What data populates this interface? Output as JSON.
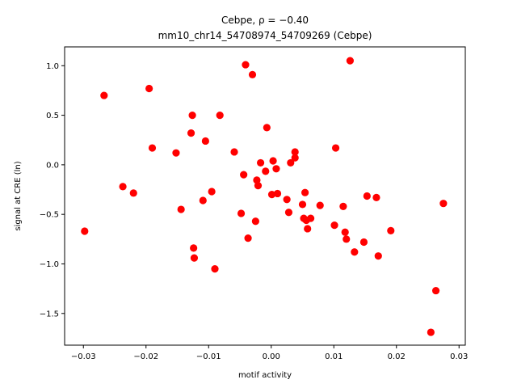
{
  "chart_data": {
    "type": "scatter",
    "title_line1": "Cebpe, ρ = −0.40",
    "title_line2": "mm10_chr14_54708974_54709269 (Cebpe)",
    "xlabel": "motif activity",
    "ylabel": "signal at CRE (ln)",
    "xlim": [
      -0.033,
      0.031
    ],
    "ylim": [
      -1.82,
      1.19
    ],
    "xticks": [
      -0.03,
      -0.02,
      -0.01,
      0.0,
      0.01,
      0.02,
      0.03
    ],
    "xtick_labels": [
      "−0.03",
      "−0.02",
      "−0.01",
      "0.00",
      "0.01",
      "0.02",
      "0.03"
    ],
    "yticks": [
      -1.5,
      -1.0,
      -0.5,
      0.0,
      0.5,
      1.0
    ],
    "ytick_labels": [
      "−1.5",
      "−1.0",
      "−0.5",
      "0.0",
      "0.5",
      "1.0"
    ],
    "grid": false,
    "color": "#ff0000",
    "points": [
      {
        "x": -0.0298,
        "y": -0.67
      },
      {
        "x": -0.0267,
        "y": 0.7
      },
      {
        "x": -0.0237,
        "y": -0.22
      },
      {
        "x": -0.022,
        "y": -0.285
      },
      {
        "x": -0.0195,
        "y": 0.77
      },
      {
        "x": -0.019,
        "y": 0.17
      },
      {
        "x": -0.0152,
        "y": 0.12
      },
      {
        "x": -0.0144,
        "y": -0.45
      },
      {
        "x": -0.0128,
        "y": 0.32
      },
      {
        "x": -0.0126,
        "y": 0.5
      },
      {
        "x": -0.0124,
        "y": -0.84
      },
      {
        "x": -0.0123,
        "y": -0.94
      },
      {
        "x": -0.0109,
        "y": -0.36
      },
      {
        "x": -0.0105,
        "y": 0.24
      },
      {
        "x": -0.0095,
        "y": -0.27
      },
      {
        "x": -0.009,
        "y": -1.05
      },
      {
        "x": -0.0082,
        "y": 0.5
      },
      {
        "x": -0.0059,
        "y": 0.13
      },
      {
        "x": -0.0048,
        "y": -0.49
      },
      {
        "x": -0.0044,
        "y": -0.1
      },
      {
        "x": -0.0041,
        "y": 1.01
      },
      {
        "x": -0.0037,
        "y": -0.74
      },
      {
        "x": -0.003,
        "y": 0.91
      },
      {
        "x": -0.0025,
        "y": -0.57
      },
      {
        "x": -0.0023,
        "y": -0.155
      },
      {
        "x": -0.0021,
        "y": -0.21
      },
      {
        "x": -0.0017,
        "y": 0.02
      },
      {
        "x": -0.0009,
        "y": -0.065
      },
      {
        "x": -0.0007,
        "y": 0.375
      },
      {
        "x": 0.0001,
        "y": -0.3
      },
      {
        "x": 0.0003,
        "y": 0.04
      },
      {
        "x": 0.001,
        "y": -0.29
      },
      {
        "x": 0.0008,
        "y": -0.04
      },
      {
        "x": 0.0025,
        "y": -0.35
      },
      {
        "x": 0.0028,
        "y": -0.48
      },
      {
        "x": 0.0031,
        "y": 0.02
      },
      {
        "x": 0.0038,
        "y": 0.07
      },
      {
        "x": 0.0038,
        "y": 0.13
      },
      {
        "x": 0.005,
        "y": -0.4
      },
      {
        "x": 0.0052,
        "y": -0.54
      },
      {
        "x": 0.0054,
        "y": -0.28
      },
      {
        "x": 0.0056,
        "y": -0.56
      },
      {
        "x": 0.0058,
        "y": -0.645
      },
      {
        "x": 0.0063,
        "y": -0.54
      },
      {
        "x": 0.0078,
        "y": -0.41
      },
      {
        "x": 0.0101,
        "y": -0.61
      },
      {
        "x": 0.0103,
        "y": 0.17
      },
      {
        "x": 0.0115,
        "y": -0.42
      },
      {
        "x": 0.0118,
        "y": -0.68
      },
      {
        "x": 0.012,
        "y": -0.75
      },
      {
        "x": 0.0126,
        "y": 1.05
      },
      {
        "x": 0.0133,
        "y": -0.88
      },
      {
        "x": 0.0148,
        "y": -0.78
      },
      {
        "x": 0.0153,
        "y": -0.315
      },
      {
        "x": 0.0168,
        "y": -0.33
      },
      {
        "x": 0.0171,
        "y": -0.92
      },
      {
        "x": 0.0191,
        "y": -0.665
      },
      {
        "x": 0.0255,
        "y": -1.69
      },
      {
        "x": 0.0263,
        "y": -1.27
      },
      {
        "x": 0.0275,
        "y": -0.39
      }
    ]
  }
}
